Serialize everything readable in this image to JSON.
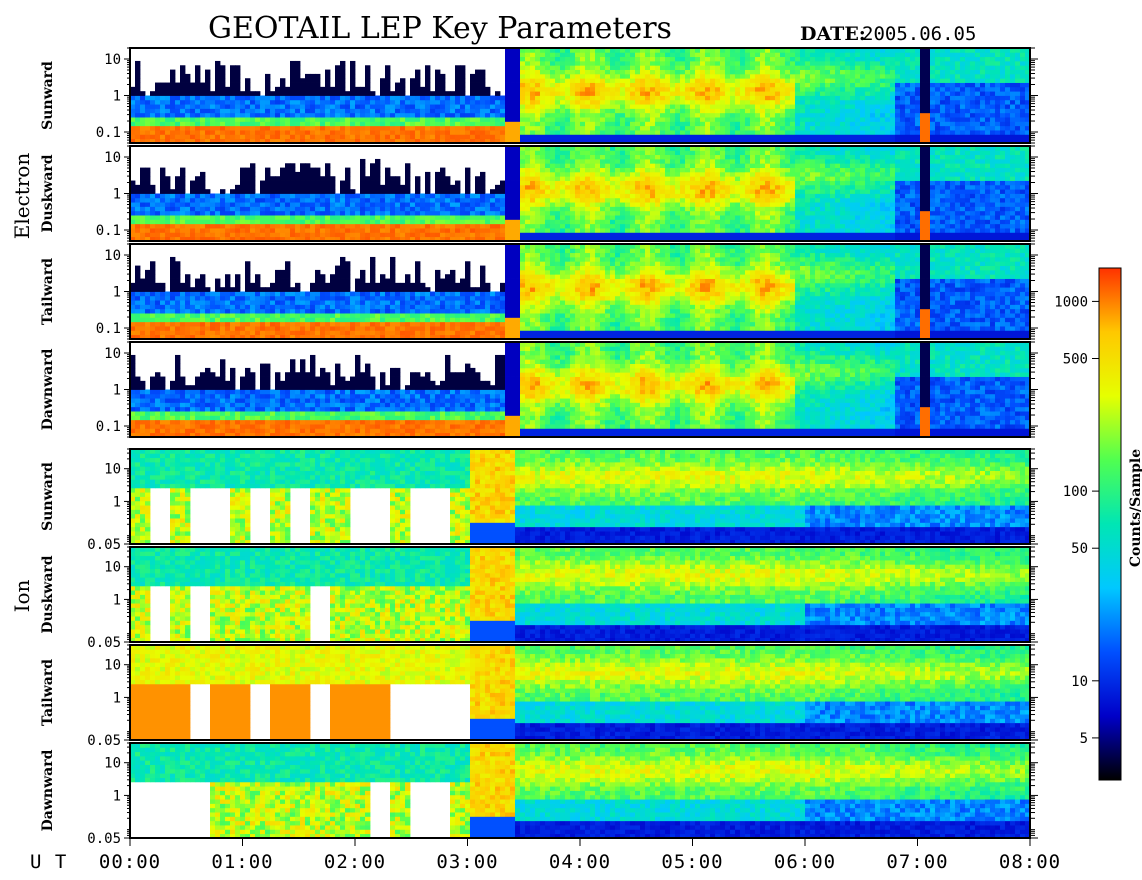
{
  "chart_data": {
    "type": "heatmap",
    "title": "GEOTAIL LEP Key Parameters",
    "date_label": "DATE:",
    "date_value": "2005.06.05",
    "x_axis_label": "U T",
    "x_ticks": [
      "00:00",
      "01:00",
      "02:00",
      "03:00",
      "04:00",
      "05:00",
      "06:00",
      "07:00",
      "08:00"
    ],
    "xlim": [
      "00:00",
      "08:00"
    ],
    "groups": [
      {
        "name": "Electron",
        "panels": [
          {
            "label": "Sunward",
            "yticks": [
              "10",
              "1",
              "0.1"
            ],
            "ylim": [
              0.05,
              20
            ],
            "yscale": "log"
          },
          {
            "label": "Duskward",
            "yticks": [
              "10",
              "1",
              "0.1"
            ],
            "ylim": [
              0.05,
              20
            ],
            "yscale": "log"
          },
          {
            "label": "Tailward",
            "yticks": [
              "10",
              "1",
              "0.1"
            ],
            "ylim": [
              0.05,
              20
            ],
            "yscale": "log"
          },
          {
            "label": "Dawnward",
            "yticks": [
              "10",
              "1",
              "0.1"
            ],
            "ylim": [
              0.05,
              20
            ],
            "yscale": "log"
          }
        ]
      },
      {
        "name": "Ion",
        "panels": [
          {
            "label": "Sunward",
            "yticks": [
              "10",
              "1",
              "0.05"
            ],
            "ylim": [
              0.05,
              40
            ],
            "yscale": "log"
          },
          {
            "label": "Duskward",
            "yticks": [
              "10",
              "1",
              "0.05"
            ],
            "ylim": [
              0.05,
              40
            ],
            "yscale": "log"
          },
          {
            "label": "Tailward",
            "yticks": [
              "10",
              "1",
              "0.05"
            ],
            "ylim": [
              0.05,
              40
            ],
            "yscale": "log"
          },
          {
            "label": "Dawnward",
            "yticks": [
              "10",
              "1",
              "0.05"
            ],
            "ylim": [
              0.05,
              40
            ],
            "yscale": "log"
          }
        ]
      }
    ],
    "colorbar": {
      "label": "Counts/Sample",
      "scale": "log",
      "range": [
        3,
        1500
      ],
      "ticks": [
        "1000",
        "500",
        "100",
        "50",
        "10",
        "5"
      ],
      "colors": [
        "#000000",
        "#0000c8",
        "#0050ff",
        "#00c8ff",
        "#00e6b4",
        "#50ff50",
        "#e6ff00",
        "#ffc800",
        "#ff3200"
      ]
    }
  }
}
